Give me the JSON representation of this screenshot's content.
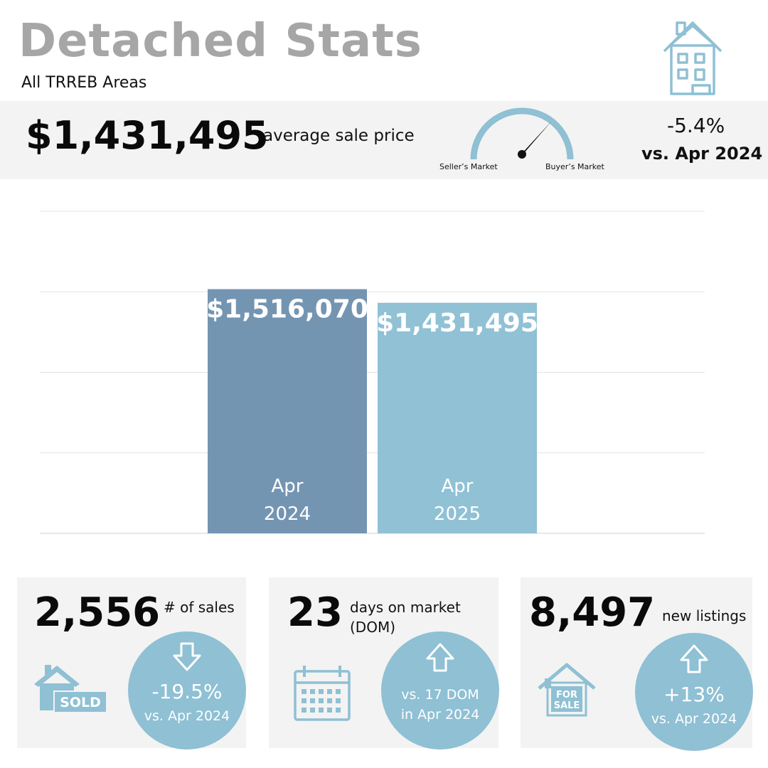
{
  "header": {
    "title": "Detached Stats",
    "subtitle": "All TRREB Areas"
  },
  "summary": {
    "avg_price": "$1,431,495",
    "avg_price_label": "average sale price",
    "gauge": {
      "left_label": "Seller’s Market",
      "right_label": "Buyer’s Market"
    },
    "change": "-5.4%",
    "change_compare": "vs. Apr 2024"
  },
  "chart_data": {
    "type": "bar",
    "categories": [
      "Apr 2024",
      "Apr 2025"
    ],
    "category_lines": [
      [
        "Apr",
        "2024"
      ],
      [
        "Apr",
        "2025"
      ]
    ],
    "values": [
      1516070,
      1431495
    ],
    "value_labels": [
      "$1,516,070",
      "$1,431,495"
    ],
    "ylim": [
      0,
      2000000
    ],
    "grid": true,
    "colors": [
      "#7495b2",
      "#90c1d5"
    ]
  },
  "cards": [
    {
      "number": "2,556",
      "label_lines": [
        "# of sales"
      ],
      "icon": "sold-house-icon",
      "icon_text": "SOLD",
      "arrow": "down",
      "change": "-19.5%",
      "compare_lines": [
        "vs. Apr 2024"
      ]
    },
    {
      "number": "23",
      "label_lines": [
        "days on market",
        "(DOM)"
      ],
      "icon": "calendar-icon",
      "arrow": "up",
      "compare_lines": [
        "vs. 17 DOM",
        "in Apr 2024"
      ]
    },
    {
      "number": "8,497",
      "label_lines": [
        "new listings"
      ],
      "icon": "for-sale-house-icon",
      "icon_text_lines": [
        "FOR",
        "SALE"
      ],
      "arrow": "up",
      "change": "+13%",
      "compare_lines": [
        "vs. Apr 2024"
      ]
    }
  ],
  "colors": {
    "accent": "#90c1d5",
    "bar_2024": "#7495b2",
    "panel": "#f3f3f3",
    "title_gray": "#a6a6a6"
  }
}
